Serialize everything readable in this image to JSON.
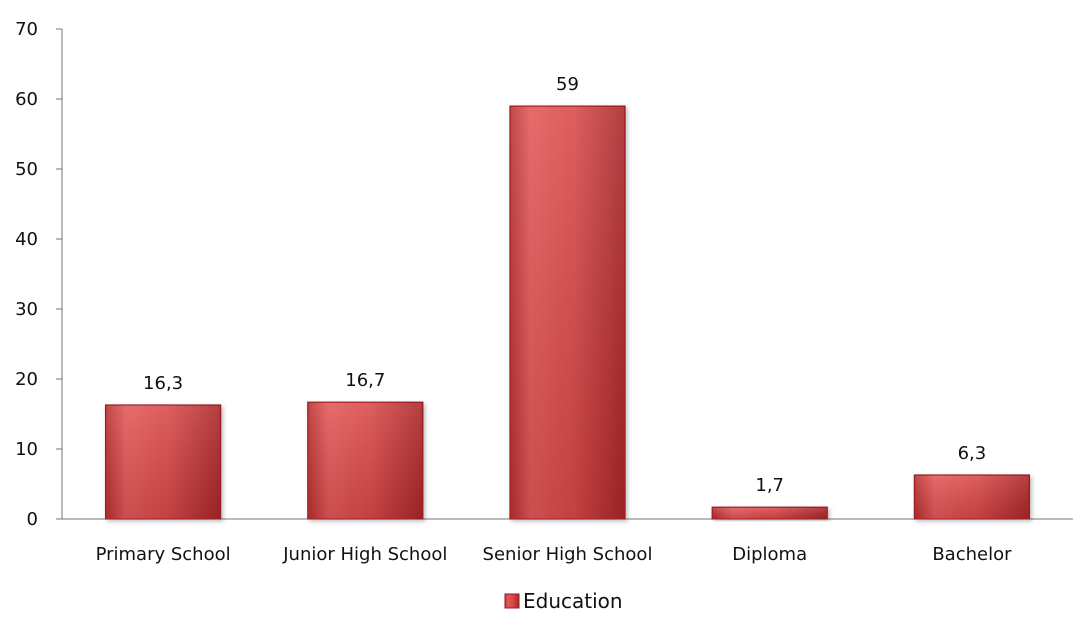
{
  "chart_data": {
    "type": "bar",
    "categories": [
      "Primary School",
      "Junior High School",
      "Senior High School",
      "Diploma",
      "Bachelor"
    ],
    "series": [
      {
        "name": "Education",
        "values": [
          16.3,
          16.7,
          59,
          1.7,
          6.3
        ],
        "value_labels": [
          "16,3",
          "16,7",
          "59",
          "1,7",
          "6,3"
        ],
        "color": "#d94a4a"
      }
    ],
    "y_ticks": [
      0,
      10,
      20,
      30,
      40,
      50,
      60,
      70
    ],
    "y_tick_labels": [
      "0",
      "10",
      "20",
      "30",
      "40",
      "50",
      "60",
      "70"
    ],
    "ylim": [
      0,
      70
    ],
    "title": "",
    "xlabel": "",
    "ylabel": "",
    "grid": false,
    "legend_position": "bottom-center"
  }
}
